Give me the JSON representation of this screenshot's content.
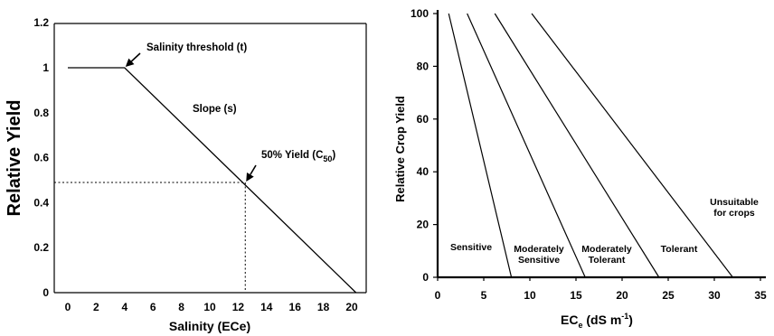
{
  "chart_data": [
    {
      "type": "line",
      "title": "",
      "xlabel": "Salinity (ECe)",
      "ylabel": "Relative Yield",
      "xlim": [
        0,
        20
      ],
      "ylim": [
        0,
        1.2
      ],
      "xticks": [
        0,
        2,
        4,
        6,
        8,
        10,
        12,
        14,
        16,
        18,
        20
      ],
      "yticks": [
        0,
        0.2,
        0.4,
        0.6,
        0.8,
        1,
        1.2
      ],
      "series": [
        {
          "x": [
            0,
            4,
            20.3
          ],
          "y": [
            1,
            1,
            0
          ]
        }
      ],
      "reference_lines": {
        "x": 12.5,
        "y": 0.49,
        "style": "dotted"
      },
      "annotations": [
        {
          "text": "Salinity threshold (t)",
          "arrow_to": [
            4,
            1
          ]
        },
        {
          "text": "Slope (s)"
        },
        {
          "text": "50% Yield (C",
          "sub": "50",
          "suffix": ")",
          "arrow_to": [
            12.5,
            0.49
          ]
        }
      ],
      "grid": false
    },
    {
      "type": "line",
      "title": "",
      "xlabel": "EC",
      "xlabel_sub": "e",
      "xlabel_rest": " (dS m",
      "xlabel_sup": "-1",
      "xlabel_end": ")",
      "ylabel": "Relative Crop Yield",
      "xlim": [
        0,
        35
      ],
      "ylim": [
        0,
        100
      ],
      "xticks": [
        0,
        5,
        10,
        15,
        20,
        25,
        30,
        35
      ],
      "yticks": [
        0,
        20,
        40,
        60,
        80,
        100
      ],
      "series": [
        {
          "x": [
            1.2,
            8
          ],
          "y": [
            100,
            0
          ]
        },
        {
          "x": [
            3.2,
            16
          ],
          "y": [
            100,
            0
          ]
        },
        {
          "x": [
            6.2,
            24
          ],
          "y": [
            100,
            0
          ]
        },
        {
          "x": [
            10.2,
            32
          ],
          "y": [
            100,
            0
          ]
        }
      ],
      "zones": [
        {
          "lines": [
            "Sensitive"
          ]
        },
        {
          "lines": [
            "Moderately",
            "Sensitive"
          ]
        },
        {
          "lines": [
            "Moderately",
            "Tolerant"
          ]
        },
        {
          "lines": [
            "Tolerant"
          ]
        },
        {
          "lines": [
            "Unsuitable",
            "for crops"
          ]
        }
      ],
      "grid": false
    }
  ]
}
